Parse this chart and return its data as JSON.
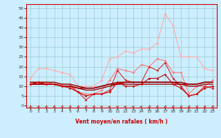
{
  "title": "",
  "xlabel": "Vent moyen/en rafales ( km/h )",
  "background_color": "#cceeff",
  "grid_color": "#99cccc",
  "x_ticks": [
    0,
    1,
    2,
    3,
    4,
    5,
    6,
    7,
    8,
    9,
    10,
    11,
    12,
    13,
    14,
    15,
    16,
    17,
    18,
    19,
    20,
    21,
    22,
    23
  ],
  "y_ticks": [
    0,
    5,
    10,
    15,
    20,
    25,
    30,
    35,
    40,
    45,
    50
  ],
  "ylim": [
    -1,
    52
  ],
  "xlim": [
    -0.5,
    23.5
  ],
  "series": [
    {
      "color": "#ffaaaa",
      "alpha": 1.0,
      "linewidth": 0.8,
      "marker": "D",
      "markersize": 1.8,
      "values": [
        14,
        19,
        19,
        18,
        17,
        16,
        10,
        10,
        10,
        13,
        24,
        25,
        28,
        27,
        29,
        29,
        32,
        47,
        41,
        25,
        25,
        25,
        19,
        18
      ]
    },
    {
      "color": "#ff7777",
      "alpha": 1.0,
      "linewidth": 0.8,
      "marker": "D",
      "markersize": 1.8,
      "values": [
        12,
        12,
        12,
        11,
        11,
        11,
        7,
        6,
        6,
        8,
        13,
        19,
        18,
        17,
        21,
        20,
        24,
        23,
        17,
        17,
        6,
        10,
        10,
        13
      ]
    },
    {
      "color": "#dd2222",
      "alpha": 1.0,
      "linewidth": 0.8,
      "marker": "D",
      "markersize": 1.8,
      "values": [
        11,
        12,
        11,
        11,
        10,
        10,
        7,
        3,
        6,
        6,
        8,
        18,
        13,
        12,
        12,
        20,
        18,
        22,
        14,
        10,
        5,
        6,
        10,
        9
      ]
    },
    {
      "color": "#cc0000",
      "alpha": 1.0,
      "linewidth": 1.2,
      "marker": null,
      "markersize": 0,
      "values": [
        11,
        11,
        11,
        11,
        10,
        10,
        9,
        9,
        9,
        10,
        11,
        11,
        12,
        12,
        12,
        12,
        12,
        12,
        12,
        11,
        11,
        11,
        12,
        12
      ]
    },
    {
      "color": "#990000",
      "alpha": 1.0,
      "linewidth": 1.0,
      "marker": null,
      "markersize": 0,
      "values": [
        11,
        11,
        11,
        11,
        10,
        10,
        9,
        8,
        8,
        9,
        10,
        11,
        11,
        11,
        11,
        11,
        11,
        11,
        11,
        11,
        10,
        10,
        11,
        11
      ]
    },
    {
      "color": "#880000",
      "alpha": 1.0,
      "linewidth": 1.0,
      "marker": null,
      "markersize": 0,
      "values": [
        12,
        12,
        12,
        12,
        11,
        11,
        10,
        9,
        9,
        10,
        11,
        12,
        12,
        12,
        12,
        12,
        12,
        12,
        12,
        12,
        11,
        11,
        12,
        12
      ]
    },
    {
      "color": "#cc0000",
      "alpha": 1.0,
      "linewidth": 0.8,
      "marker": "D",
      "markersize": 1.8,
      "values": [
        11,
        12,
        11,
        11,
        10,
        9,
        7,
        5,
        6,
        6,
        7,
        12,
        10,
        10,
        11,
        14,
        14,
        16,
        11,
        9,
        5,
        6,
        9,
        10
      ]
    }
  ],
  "arrow_angles": [
    225,
    225,
    225,
    225,
    225,
    225,
    225,
    225,
    225,
    45,
    45,
    45,
    45,
    45,
    45,
    225,
    225,
    225,
    225,
    225,
    225,
    225,
    225,
    225
  ]
}
